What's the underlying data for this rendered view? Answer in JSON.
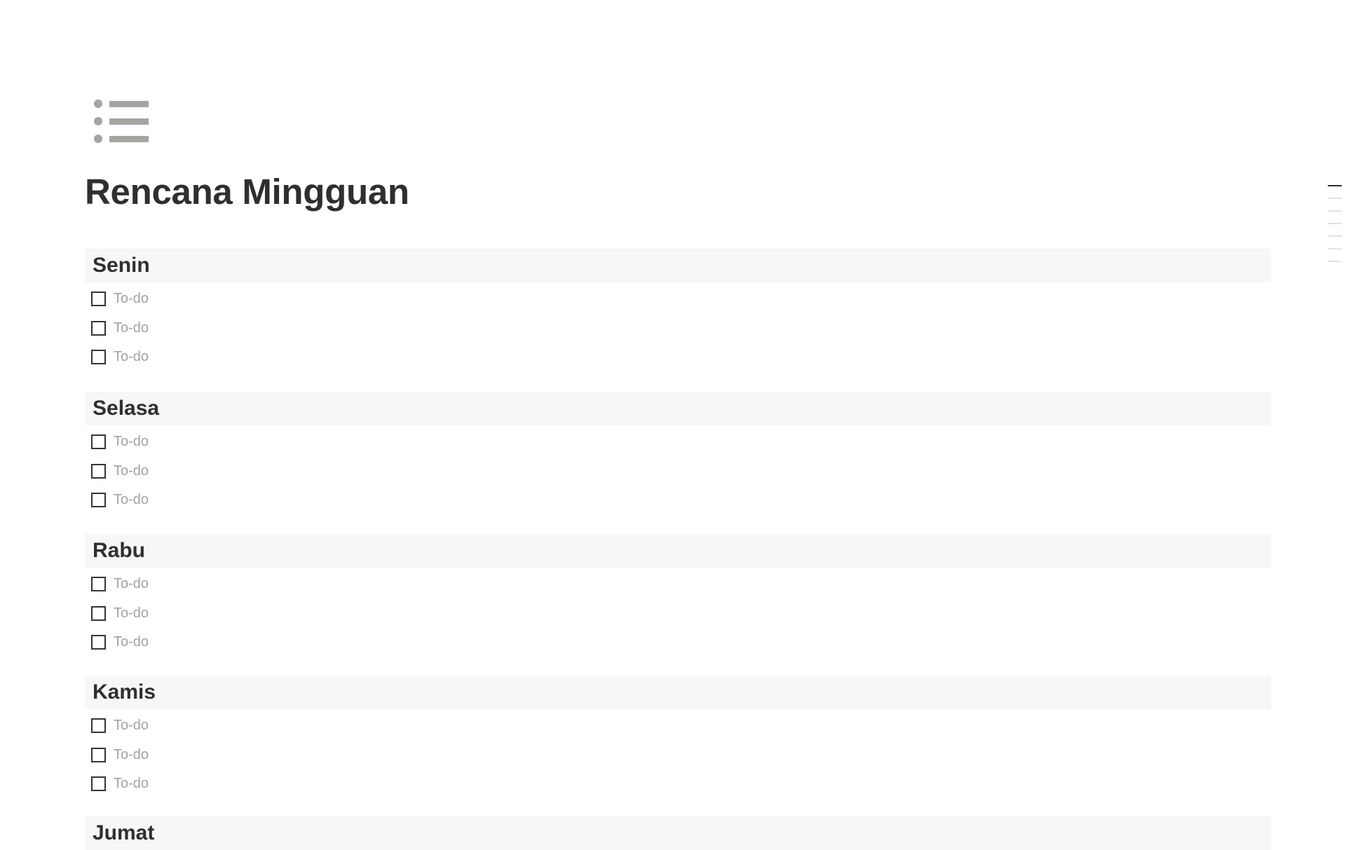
{
  "page": {
    "icon": "bulleted-list-icon",
    "title": "Rencana Mingguan"
  },
  "sections": [
    {
      "heading": "Senin",
      "todos": [
        {
          "label": "To-do",
          "checked": false
        },
        {
          "label": "To-do",
          "checked": false
        },
        {
          "label": "To-do",
          "checked": false
        }
      ]
    },
    {
      "heading": "Selasa",
      "todos": [
        {
          "label": "To-do",
          "checked": false
        },
        {
          "label": "To-do",
          "checked": false
        },
        {
          "label": "To-do",
          "checked": false
        }
      ]
    },
    {
      "heading": "Rabu",
      "todos": [
        {
          "label": "To-do",
          "checked": false
        },
        {
          "label": "To-do",
          "checked": false
        },
        {
          "label": "To-do",
          "checked": false
        }
      ]
    },
    {
      "heading": "Kamis",
      "todos": [
        {
          "label": "To-do",
          "checked": false
        },
        {
          "label": "To-do",
          "checked": false
        },
        {
          "label": "To-do",
          "checked": false
        }
      ]
    },
    {
      "heading": "Jumat",
      "todos": []
    }
  ],
  "toc": {
    "count": 7,
    "active_index": 0
  },
  "colors": {
    "heading_bg": "#f7f7f5",
    "text": "#2f2f2d",
    "placeholder": "#a3a29e",
    "icon": "#a5a49f"
  }
}
